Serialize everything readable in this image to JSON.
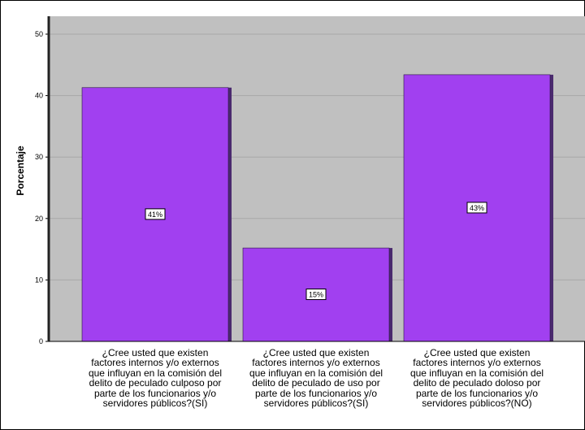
{
  "chart_data": {
    "type": "bar",
    "ylabel": "Porcentaje",
    "ylim": [
      0,
      50
    ],
    "yticks": [
      0,
      10,
      20,
      30,
      40,
      50
    ],
    "grid": true,
    "colors": {
      "plot_background": "#c0c0c0",
      "bar_fill": "#a140f0",
      "bar_shadow": "#4a2a6e",
      "grid": "#a8a8a8"
    },
    "categories": [
      {
        "lines": [
          "¿Cree usted que existen",
          "factores internos y/o externos",
          "que influyan en la comisión del",
          "delito de peculado culposo por",
          "parte de los funcionarios y/o",
          "servidores públicos?(SI)"
        ]
      },
      {
        "lines": [
          "¿Cree usted que existen",
          "factores internos y/o externos",
          "que influyan en la comisión del",
          "delito de peculado de uso por",
          "parte de los funcionarios y/o",
          "servidores públicos?(SI)"
        ]
      },
      {
        "lines": [
          "¿Cree usted que existen",
          "factores internos y/o externos",
          "que influyan en la comisión del",
          "delito de peculado doloso por",
          "parte de los funcionarios y/o",
          "servidores públicos?(NO)"
        ]
      }
    ],
    "values": [
      41.3,
      15.2,
      43.4
    ],
    "data_labels": [
      "41%",
      "15%",
      "43%"
    ]
  }
}
